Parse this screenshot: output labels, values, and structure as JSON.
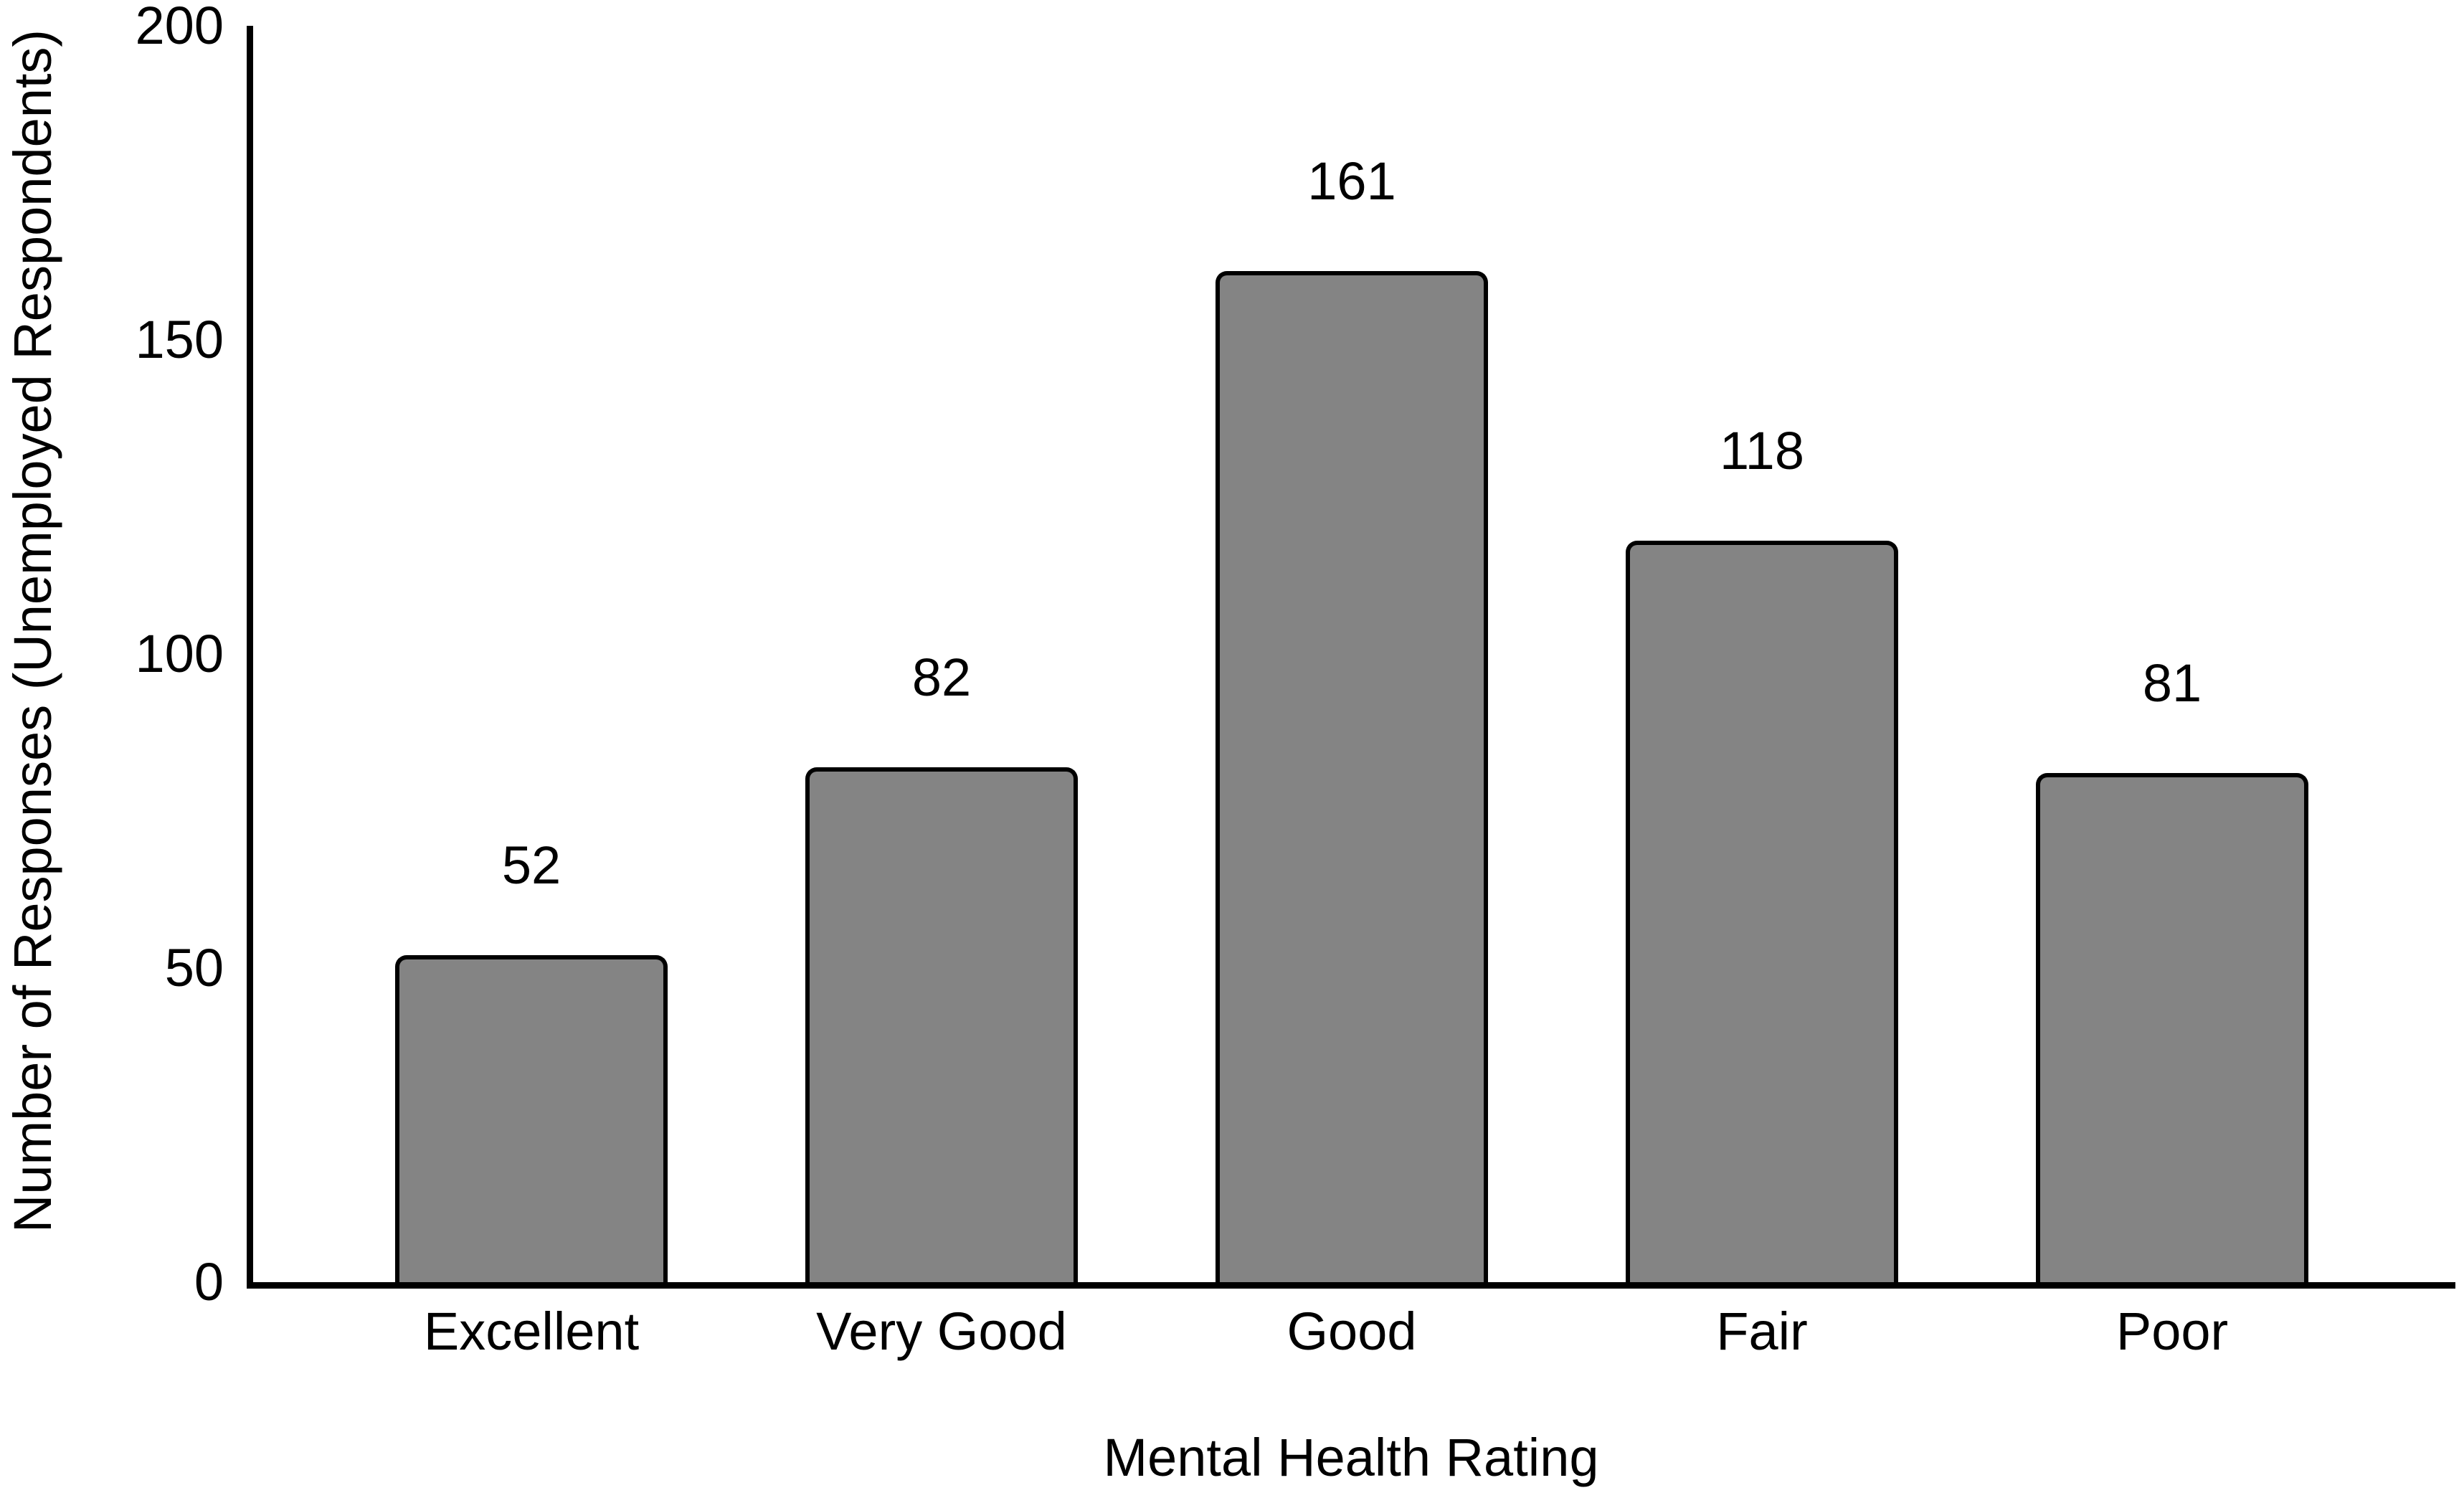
{
  "chart_data": {
    "type": "bar",
    "categories": [
      "Excellent",
      "Very Good",
      "Good",
      "Fair",
      "Poor"
    ],
    "values": [
      52,
      82,
      161,
      118,
      81
    ],
    "value_labels": [
      "52",
      "82",
      "161",
      "118",
      "81"
    ],
    "title": "",
    "xlabel": "Mental Health Rating",
    "ylabel": "Number of Responses (Unemployed Respondents)",
    "ylim": [
      0,
      200
    ],
    "yticks": [
      0,
      50,
      100,
      150,
      200
    ],
    "grid": false,
    "legend": "none",
    "colors": {
      "bar_fill": "#848484",
      "bar_border": "#000000",
      "axis": "#000000",
      "text": "#000000",
      "background": "#ffffff"
    }
  }
}
